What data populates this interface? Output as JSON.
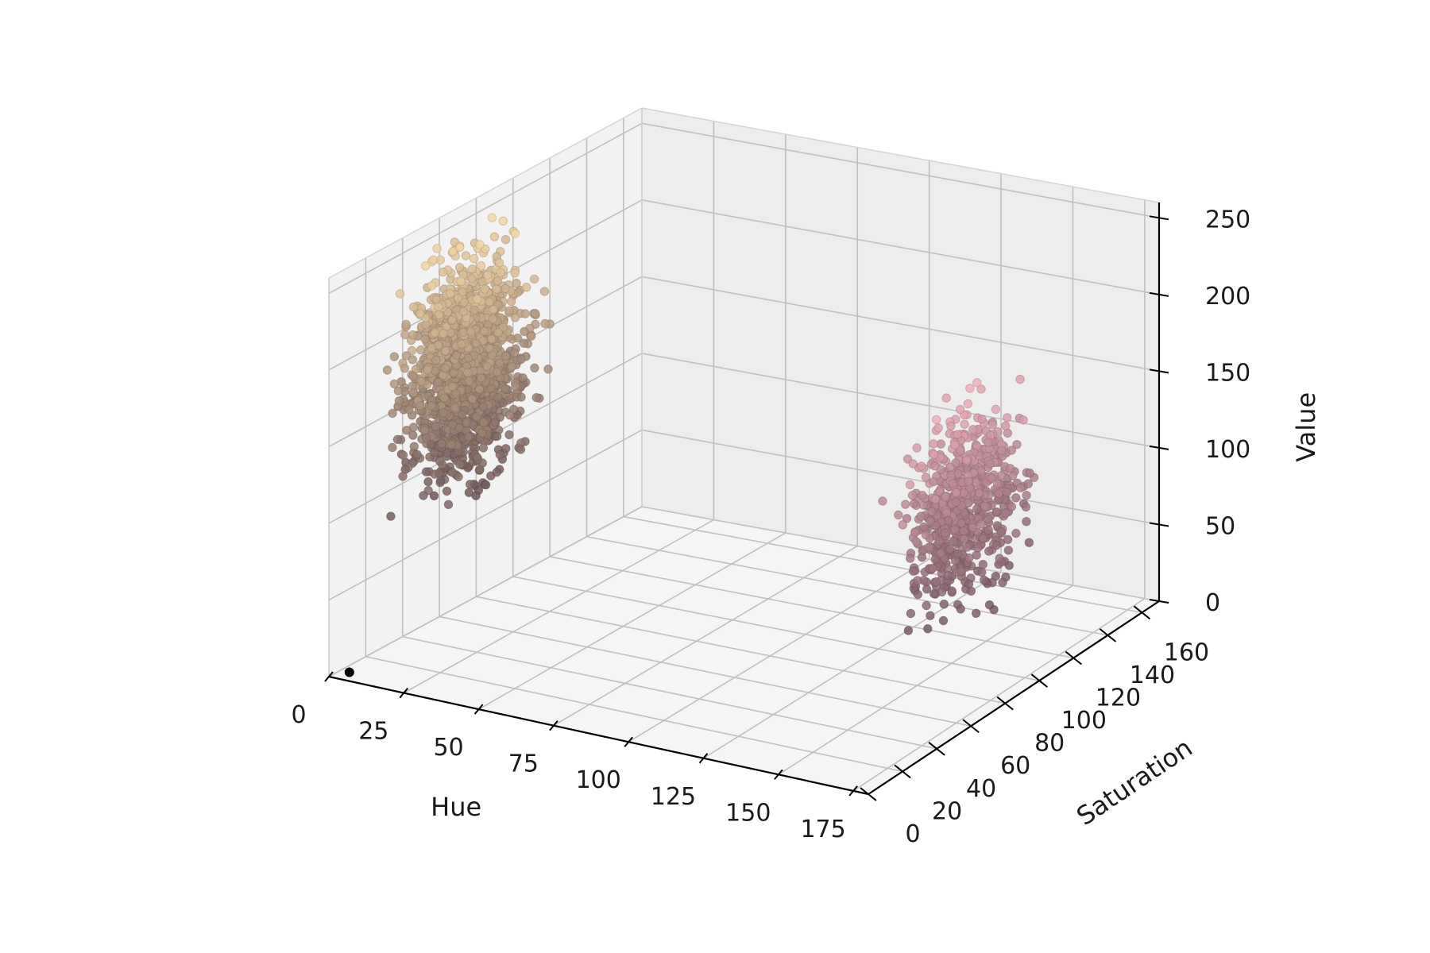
{
  "chart_data": {
    "type": "scatter3d",
    "xlabel": "Hue",
    "ylabel": "Saturation",
    "zlabel": "Value",
    "xlim": [
      0,
      180
    ],
    "ylim": [
      0,
      170
    ],
    "zlim": [
      0,
      260
    ],
    "x_ticks": [
      0,
      25,
      50,
      75,
      100,
      125,
      150,
      175
    ],
    "y_ticks": [
      0,
      20,
      40,
      60,
      80,
      100,
      120,
      140,
      160
    ],
    "z_ticks": [
      0,
      50,
      100,
      150,
      200,
      250
    ],
    "grid": true,
    "clusters": [
      {
        "hue_range": [
          2,
          28
        ],
        "saturation_range": [
          20,
          80
        ],
        "value_range": [
          95,
          255
        ],
        "approx_count": 1600,
        "color_low": "#6b5559",
        "color_high": "#f5d9a6"
      },
      {
        "hue_range": [
          160,
          179
        ],
        "saturation_range": [
          40,
          110
        ],
        "value_range": [
          60,
          200
        ],
        "approx_count": 650,
        "color_low": "#735861",
        "color_high": "#f2b1bd"
      }
    ],
    "outlier_points": [
      {
        "hue": 5,
        "saturation": 3,
        "value": 3,
        "color": "#000000"
      }
    ]
  }
}
